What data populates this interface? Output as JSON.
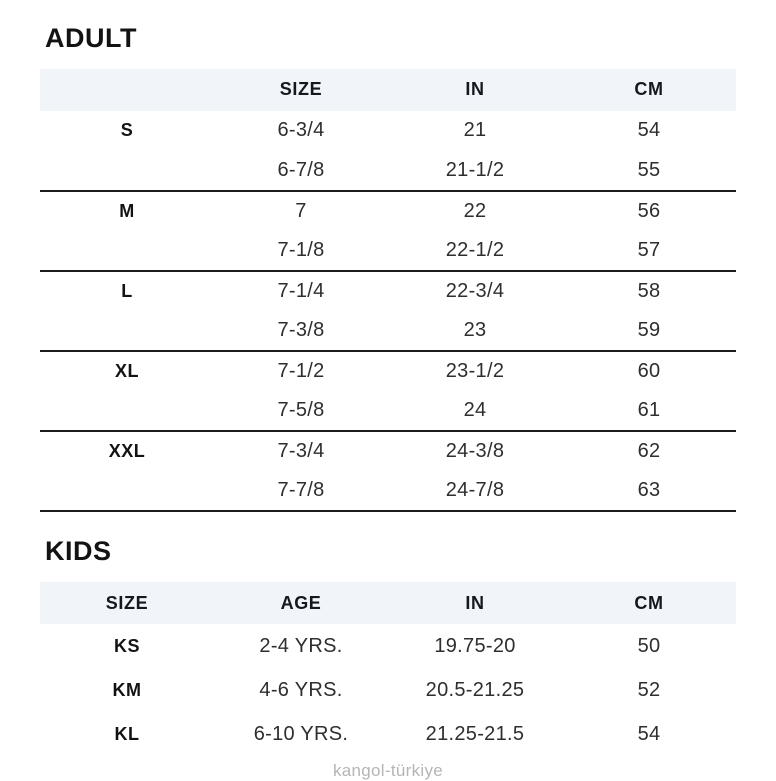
{
  "colors": {
    "header_band_bg": "#f1f4f8",
    "heading_text": "#131313",
    "body_text": "#2e2e2e",
    "group_divider": "#1b1b1b",
    "watermark_text": "#b5b5b5"
  },
  "adult": {
    "title": "ADULT",
    "columns": [
      "",
      "SIZE",
      "IN",
      "CM"
    ],
    "groups": [
      {
        "label": "S",
        "rows": [
          [
            "6-3/4",
            "21",
            "54"
          ],
          [
            "6-7/8",
            "21-1/2",
            "55"
          ]
        ]
      },
      {
        "label": "M",
        "rows": [
          [
            "7",
            "22",
            "56"
          ],
          [
            "7-1/8",
            "22-1/2",
            "57"
          ]
        ]
      },
      {
        "label": "L",
        "rows": [
          [
            "7-1/4",
            "22-3/4",
            "58"
          ],
          [
            "7-3/8",
            "23",
            "59"
          ]
        ]
      },
      {
        "label": "XL",
        "rows": [
          [
            "7-1/2",
            "23-1/2",
            "60"
          ],
          [
            "7-5/8",
            "24",
            "61"
          ]
        ]
      },
      {
        "label": "XXL",
        "rows": [
          [
            "7-3/4",
            "24-3/8",
            "62"
          ],
          [
            "7-7/8",
            "24-7/8",
            "63"
          ]
        ]
      }
    ]
  },
  "kids": {
    "title": "KIDS",
    "columns": [
      "SIZE",
      "AGE",
      "IN",
      "CM"
    ],
    "rows": [
      [
        "KS",
        "2-4 YRS.",
        "19.75-20",
        "50"
      ],
      [
        "KM",
        "4-6 YRS.",
        "20.5-21.25",
        "52"
      ],
      [
        "KL",
        "6-10 YRS.",
        "21.25-21.5",
        "54"
      ]
    ]
  },
  "footer": {
    "watermark": "kangol-türkiye"
  }
}
